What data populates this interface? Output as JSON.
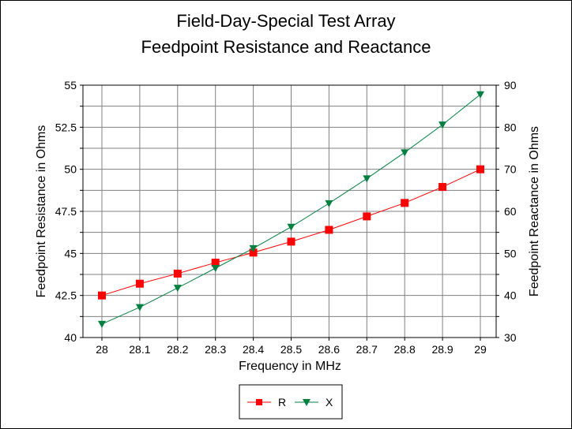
{
  "chart_data": {
    "type": "line",
    "title": [
      "Field-Day-Special Test Array",
      "Feedpoint Resistance and Reactance"
    ],
    "xlabel": "Frequency in MHz",
    "ylabel": "Feedpoint Resistance in Ohms",
    "y2label": "Feedpoint Reactance in Ohms",
    "x": [
      28,
      28.1,
      28.2,
      28.3,
      28.4,
      28.5,
      28.6,
      28.7,
      28.8,
      28.9,
      29
    ],
    "x_tick_labels": [
      "28",
      "28.1",
      "28.2",
      "28.3",
      "28.4",
      "28.5",
      "28.6",
      "28.7",
      "28.8",
      "28.9",
      "29"
    ],
    "ylim": [
      40,
      55
    ],
    "y_ticks": [
      "40",
      "42.5",
      "45",
      "47.5",
      "50",
      "52.5",
      "55"
    ],
    "y2lim": [
      30,
      90
    ],
    "y2_ticks": [
      "30",
      "40",
      "50",
      "60",
      "70",
      "80",
      "90"
    ],
    "grid": true,
    "legend_position": "bottom-center",
    "series": [
      {
        "name": "R",
        "axis": "left",
        "color": "#ff0000",
        "marker": "square",
        "values": [
          42.5,
          43.2,
          43.8,
          44.45,
          45.05,
          45.7,
          46.4,
          47.2,
          48.0,
          48.95,
          50.0
        ]
      },
      {
        "name": "X",
        "axis": "right",
        "color": "#008040",
        "marker": "triangle-down",
        "values": [
          33.2,
          37.2,
          41.8,
          46.5,
          51.2,
          56.3,
          61.9,
          67.8,
          74.0,
          80.6,
          87.8
        ]
      }
    ]
  }
}
